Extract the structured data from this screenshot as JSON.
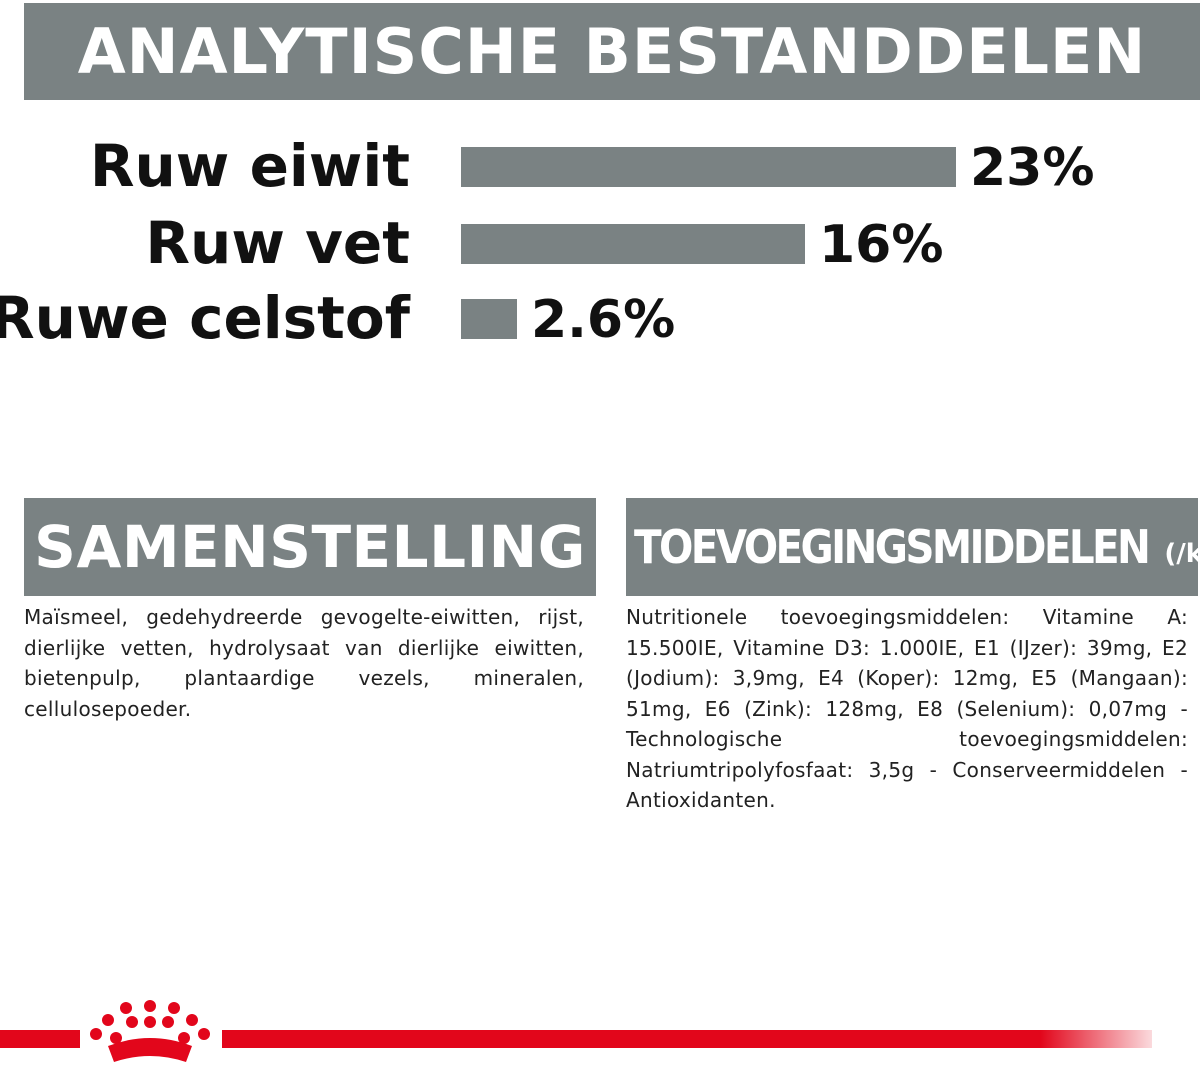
{
  "header": {
    "title": "ANALYTISCHE BESTANDDELEN"
  },
  "chart_data": {
    "type": "bar",
    "orientation": "horizontal",
    "categories": [
      "Ruw eiwit",
      "Ruw vet",
      "Ruwe celstof"
    ],
    "values": [
      23,
      16,
      2.6
    ],
    "value_labels": [
      "23%",
      "16%",
      "2.6%"
    ],
    "title": "ANALYTISCHE BESTANDDELEN",
    "xlabel": "",
    "ylabel": "",
    "grid": false,
    "bar_color": "#7a8283"
  },
  "composition": {
    "title": "SAMENSTELLING",
    "text": "Maïsmeel, gedehydreerde gevogelte-eiwitten, rijst, dierlijke vetten, hydrolysaat van dierlijke eiwitten, bietenpulp, plantaardige vezels, mineralen, cellulosepoeder."
  },
  "additives": {
    "title": "TOEVOEGINGSMIDDELEN",
    "unit": "(/kg)",
    "text": "Nutritionele toevoegingsmiddelen: Vitamine A: 15.500IE, Vitamine D3: 1.000IE, E1 (IJzer): 39mg, E2 (Jodium): 3,9mg, E4 (Koper): 12mg, E5 (Mangaan): 51mg, E6 (Zink): 128mg, E8 (Selenium): 0,07mg - Technologische toevoegingsmiddelen: Natriumtripolyfosfaat: 3,5g - Conserveermiddelen - Antioxidanten."
  },
  "brand": {
    "logo_icon": "royal-canin-crown-icon",
    "accent_color": "#e2061b",
    "header_color": "#7a8283"
  }
}
